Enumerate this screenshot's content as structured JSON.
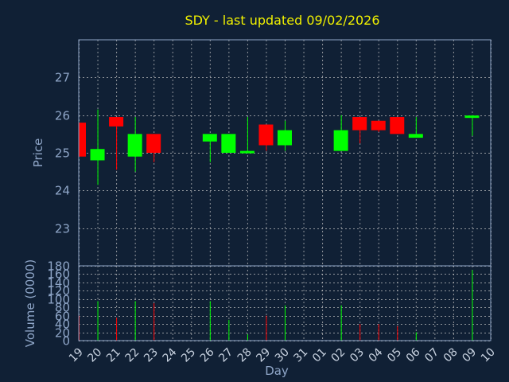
{
  "chart_data": {
    "type": "candlestick",
    "title": "SDY - last updated 09/02/2026",
    "xlabel": "Day",
    "x_ticks": [
      "19",
      "20",
      "21",
      "22",
      "23",
      "24",
      "25",
      "26",
      "27",
      "28",
      "29",
      "30",
      "31",
      "01",
      "02",
      "03",
      "04",
      "05",
      "06",
      "07",
      "08",
      "09",
      "10"
    ],
    "colors": {
      "background": "#102035",
      "up": "#00ff00",
      "down": "#ff0000",
      "grid": "#c8c8c8",
      "axis": "#8fa6c8",
      "title": "#f0f000"
    },
    "price_panel": {
      "ylabel": "Price",
      "ylim": [
        22.0,
        28.0
      ],
      "y_ticks": [
        23,
        24,
        25,
        26,
        27
      ],
      "grid": true
    },
    "volume_panel": {
      "ylabel": "Volume (0000)",
      "ylim": [
        0,
        180
      ],
      "y_ticks": [
        0,
        20,
        40,
        60,
        80,
        100,
        120,
        140,
        160,
        180
      ],
      "grid": true
    },
    "candles": [
      {
        "day": "19",
        "open": 25.8,
        "high": 25.8,
        "low": 24.9,
        "close": 24.9,
        "volume": 60
      },
      {
        "day": "20",
        "open": 24.8,
        "high": 26.15,
        "low": 24.15,
        "close": 25.1,
        "volume": 95
      },
      {
        "day": "21",
        "open": 25.95,
        "high": 25.95,
        "low": 24.55,
        "close": 25.7,
        "volume": 55
      },
      {
        "day": "22",
        "open": 24.9,
        "high": 25.95,
        "low": 24.5,
        "close": 25.5,
        "volume": 95
      },
      {
        "day": "23",
        "open": 25.5,
        "high": 25.5,
        "low": 24.75,
        "close": 25.0,
        "volume": 90
      },
      {
        "day": "26",
        "open": 25.3,
        "high": 25.5,
        "low": 24.75,
        "close": 25.5,
        "volume": 95
      },
      {
        "day": "27",
        "open": 25.0,
        "high": 25.5,
        "low": 25.0,
        "close": 25.5,
        "volume": 50
      },
      {
        "day": "28",
        "open": 25.0,
        "high": 25.95,
        "low": 25.0,
        "close": 25.05,
        "volume": 15
      },
      {
        "day": "29",
        "open": 25.75,
        "high": 25.75,
        "low": 25.05,
        "close": 25.2,
        "volume": 60
      },
      {
        "day": "30",
        "open": 25.2,
        "high": 25.85,
        "low": 25.05,
        "close": 25.6,
        "volume": 85
      },
      {
        "day": "02",
        "open": 25.05,
        "high": 26.0,
        "low": 25.05,
        "close": 25.6,
        "volume": 85
      },
      {
        "day": "03",
        "open": 25.95,
        "high": 25.95,
        "low": 25.25,
        "close": 25.6,
        "volume": 40
      },
      {
        "day": "04",
        "open": 25.85,
        "high": 25.85,
        "low": 25.55,
        "close": 25.6,
        "volume": 40
      },
      {
        "day": "05",
        "open": 25.95,
        "high": 25.95,
        "low": 25.5,
        "close": 25.5,
        "volume": 35
      },
      {
        "day": "06",
        "open": 25.4,
        "high": 25.95,
        "low": 25.4,
        "close": 25.5,
        "volume": 20
      },
      {
        "day": "09",
        "open": 25.93,
        "high": 26.0,
        "low": 25.45,
        "close": 25.99,
        "volume": 170
      }
    ]
  }
}
